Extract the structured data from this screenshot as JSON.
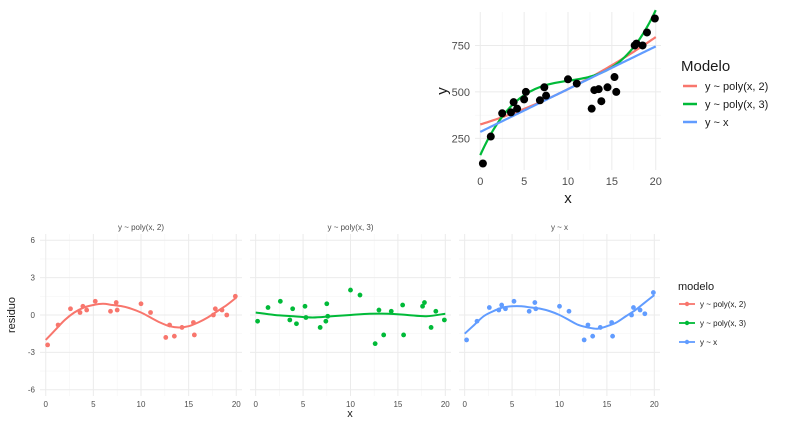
{
  "colors": {
    "poly2": "#F8766D",
    "poly3": "#00BA38",
    "linear": "#619CFF",
    "points": "#000000",
    "grid_major": "#EBEBEB",
    "grid_minor": "#F5F5F5",
    "text": "#4D4D4D",
    "title": "#1A1A1A"
  },
  "chart_data": [
    {
      "type": "scatter",
      "panel": "top-fit",
      "xlabel": "x",
      "ylabel": "y",
      "xlim": [
        -0.6,
        20.6
      ],
      "ylim": [
        80,
        930
      ],
      "x_ticks": [
        0,
        5,
        10,
        15,
        20
      ],
      "y_ticks": [
        250,
        500,
        750
      ],
      "grid": true,
      "legend": {
        "title": "Modelo",
        "position": "right",
        "entries": [
          "y ~ poly(x, 2)",
          "y ~ poly(x, 3)",
          "y ~ x"
        ]
      },
      "points": [
        [
          0.3,
          115
        ],
        [
          1.2,
          260
        ],
        [
          2.5,
          385
        ],
        [
          3.5,
          390
        ],
        [
          3.8,
          445
        ],
        [
          4.2,
          410
        ],
        [
          5.0,
          460
        ],
        [
          5.2,
          500
        ],
        [
          6.8,
          455
        ],
        [
          7.3,
          525
        ],
        [
          7.5,
          480
        ],
        [
          10.0,
          568
        ],
        [
          11.0,
          545
        ],
        [
          12.7,
          410
        ],
        [
          13.0,
          510
        ],
        [
          13.5,
          515
        ],
        [
          13.8,
          450
        ],
        [
          14.5,
          525
        ],
        [
          15.3,
          580
        ],
        [
          15.5,
          500
        ],
        [
          17.6,
          750
        ],
        [
          17.8,
          760
        ],
        [
          18.5,
          750
        ],
        [
          19.0,
          820
        ],
        [
          19.9,
          895
        ]
      ],
      "series": [
        {
          "name": "y ~ poly(x, 2)",
          "color_key": "poly2",
          "x": [
            0,
            20
          ],
          "curve": "poly2",
          "coef": [
            325,
            14.5,
            0.45
          ]
        },
        {
          "name": "y ~ poly(x, 3)",
          "color_key": "poly3",
          "x": [
            0,
            20
          ],
          "curve": "poly3",
          "coef": [
            160,
            105,
            -9.7,
            0.32
          ]
        },
        {
          "name": "y ~ x",
          "color_key": "linear",
          "x": [
            0,
            20
          ],
          "curve": "linear",
          "coef": [
            285,
            23
          ]
        }
      ]
    },
    {
      "type": "scatter",
      "panel": "residuals",
      "xlabel": "x",
      "ylabel": "residuo",
      "xlim": [
        -0.6,
        20.6
      ],
      "ylim": [
        -6.5,
        6.5
      ],
      "x_ticks": [
        0,
        5,
        10,
        15,
        20
      ],
      "y_ticks": [
        -6,
        -3,
        0,
        3,
        6
      ],
      "grid": true,
      "legend": {
        "title": "modelo",
        "position": "right",
        "entries": [
          "y ~ poly(x, 2)",
          "y ~ poly(x, 3)",
          "y ~ x"
        ]
      },
      "facets": [
        {
          "label": "y ~ poly(x, 2)",
          "color_key": "poly2",
          "points": [
            [
              0.2,
              -2.4
            ],
            [
              1.3,
              -0.8
            ],
            [
              2.6,
              0.5
            ],
            [
              3.6,
              0.2
            ],
            [
              3.9,
              0.7
            ],
            [
              4.3,
              0.4
            ],
            [
              5.2,
              1.1
            ],
            [
              6.8,
              0.3
            ],
            [
              7.4,
              1.0
            ],
            [
              7.5,
              0.4
            ],
            [
              10.0,
              0.9
            ],
            [
              11.0,
              0.2
            ],
            [
              12.6,
              -1.8
            ],
            [
              13.0,
              -0.8
            ],
            [
              13.5,
              -1.7
            ],
            [
              14.3,
              -1.0
            ],
            [
              15.5,
              -0.6
            ],
            [
              15.6,
              -1.6
            ],
            [
              17.6,
              0.0
            ],
            [
              17.8,
              0.5
            ],
            [
              18.5,
              0.4
            ],
            [
              19.0,
              0.0
            ],
            [
              19.9,
              1.5
            ]
          ],
          "curve": [
            [
              0,
              -2.0
            ],
            [
              1,
              -1.2
            ],
            [
              2,
              -0.4
            ],
            [
              3,
              0.2
            ],
            [
              4,
              0.6
            ],
            [
              5,
              0.8
            ],
            [
              6,
              0.9
            ],
            [
              7,
              0.8
            ],
            [
              8,
              0.7
            ],
            [
              9,
              0.5
            ],
            [
              10,
              0.2
            ],
            [
              11,
              -0.2
            ],
            [
              12,
              -0.6
            ],
            [
              13,
              -0.9
            ],
            [
              14,
              -1.0
            ],
            [
              15,
              -0.9
            ],
            [
              16,
              -0.6
            ],
            [
              17,
              -0.2
            ],
            [
              18,
              0.3
            ],
            [
              19,
              0.8
            ],
            [
              20,
              1.4
            ]
          ]
        },
        {
          "label": "y ~ poly(x, 3)",
          "color_key": "poly3",
          "points": [
            [
              0.2,
              -0.5
            ],
            [
              1.3,
              0.6
            ],
            [
              2.6,
              1.1
            ],
            [
              3.6,
              -0.4
            ],
            [
              3.9,
              0.5
            ],
            [
              4.3,
              -0.7
            ],
            [
              5.2,
              0.7
            ],
            [
              5.3,
              -0.2
            ],
            [
              6.8,
              -1.0
            ],
            [
              7.4,
              -0.5
            ],
            [
              7.5,
              0.9
            ],
            [
              7.6,
              -0.1
            ],
            [
              10.0,
              2.0
            ],
            [
              11.0,
              1.6
            ],
            [
              12.6,
              -2.3
            ],
            [
              13.0,
              0.4
            ],
            [
              13.5,
              -1.6
            ],
            [
              14.3,
              0.3
            ],
            [
              15.5,
              0.8
            ],
            [
              15.6,
              -1.6
            ],
            [
              17.6,
              0.7
            ],
            [
              17.8,
              1.0
            ],
            [
              18.5,
              -1.0
            ],
            [
              19.0,
              0.3
            ],
            [
              19.9,
              -0.4
            ]
          ],
          "curve": [
            [
              0,
              0.2
            ],
            [
              2,
              0.0
            ],
            [
              4,
              -0.1
            ],
            [
              6,
              -0.2
            ],
            [
              8,
              -0.1
            ],
            [
              10,
              0.0
            ],
            [
              12,
              0.1
            ],
            [
              14,
              0.1
            ],
            [
              16,
              0.0
            ],
            [
              18,
              -0.1
            ],
            [
              20,
              0.1
            ]
          ]
        },
        {
          "label": "y ~ x",
          "color_key": "linear",
          "points": [
            [
              0.2,
              -2.0
            ],
            [
              1.3,
              -0.5
            ],
            [
              2.6,
              0.6
            ],
            [
              3.6,
              0.4
            ],
            [
              3.9,
              0.8
            ],
            [
              4.3,
              0.5
            ],
            [
              5.2,
              1.1
            ],
            [
              6.8,
              0.3
            ],
            [
              7.4,
              1.0
            ],
            [
              7.5,
              0.5
            ],
            [
              10.0,
              0.7
            ],
            [
              11.0,
              0.3
            ],
            [
              12.6,
              -2.0
            ],
            [
              13.0,
              -0.8
            ],
            [
              13.5,
              -1.7
            ],
            [
              14.3,
              -1.0
            ],
            [
              15.5,
              -0.6
            ],
            [
              15.6,
              -1.7
            ],
            [
              17.6,
              0.0
            ],
            [
              17.8,
              0.6
            ],
            [
              18.5,
              0.4
            ],
            [
              19.0,
              0.1
            ],
            [
              19.9,
              1.8
            ]
          ],
          "curve": [
            [
              0,
              -1.5
            ],
            [
              1,
              -0.8
            ],
            [
              2,
              -0.1
            ],
            [
              3,
              0.3
            ],
            [
              4,
              0.6
            ],
            [
              5,
              0.7
            ],
            [
              6,
              0.7
            ],
            [
              7,
              0.6
            ],
            [
              8,
              0.5
            ],
            [
              9,
              0.3
            ],
            [
              10,
              0.0
            ],
            [
              11,
              -0.4
            ],
            [
              12,
              -0.8
            ],
            [
              13,
              -1.0
            ],
            [
              14,
              -1.1
            ],
            [
              15,
              -0.9
            ],
            [
              16,
              -0.6
            ],
            [
              17,
              -0.1
            ],
            [
              18,
              0.4
            ],
            [
              19,
              1.0
            ],
            [
              20,
              1.6
            ]
          ]
        }
      ]
    }
  ]
}
